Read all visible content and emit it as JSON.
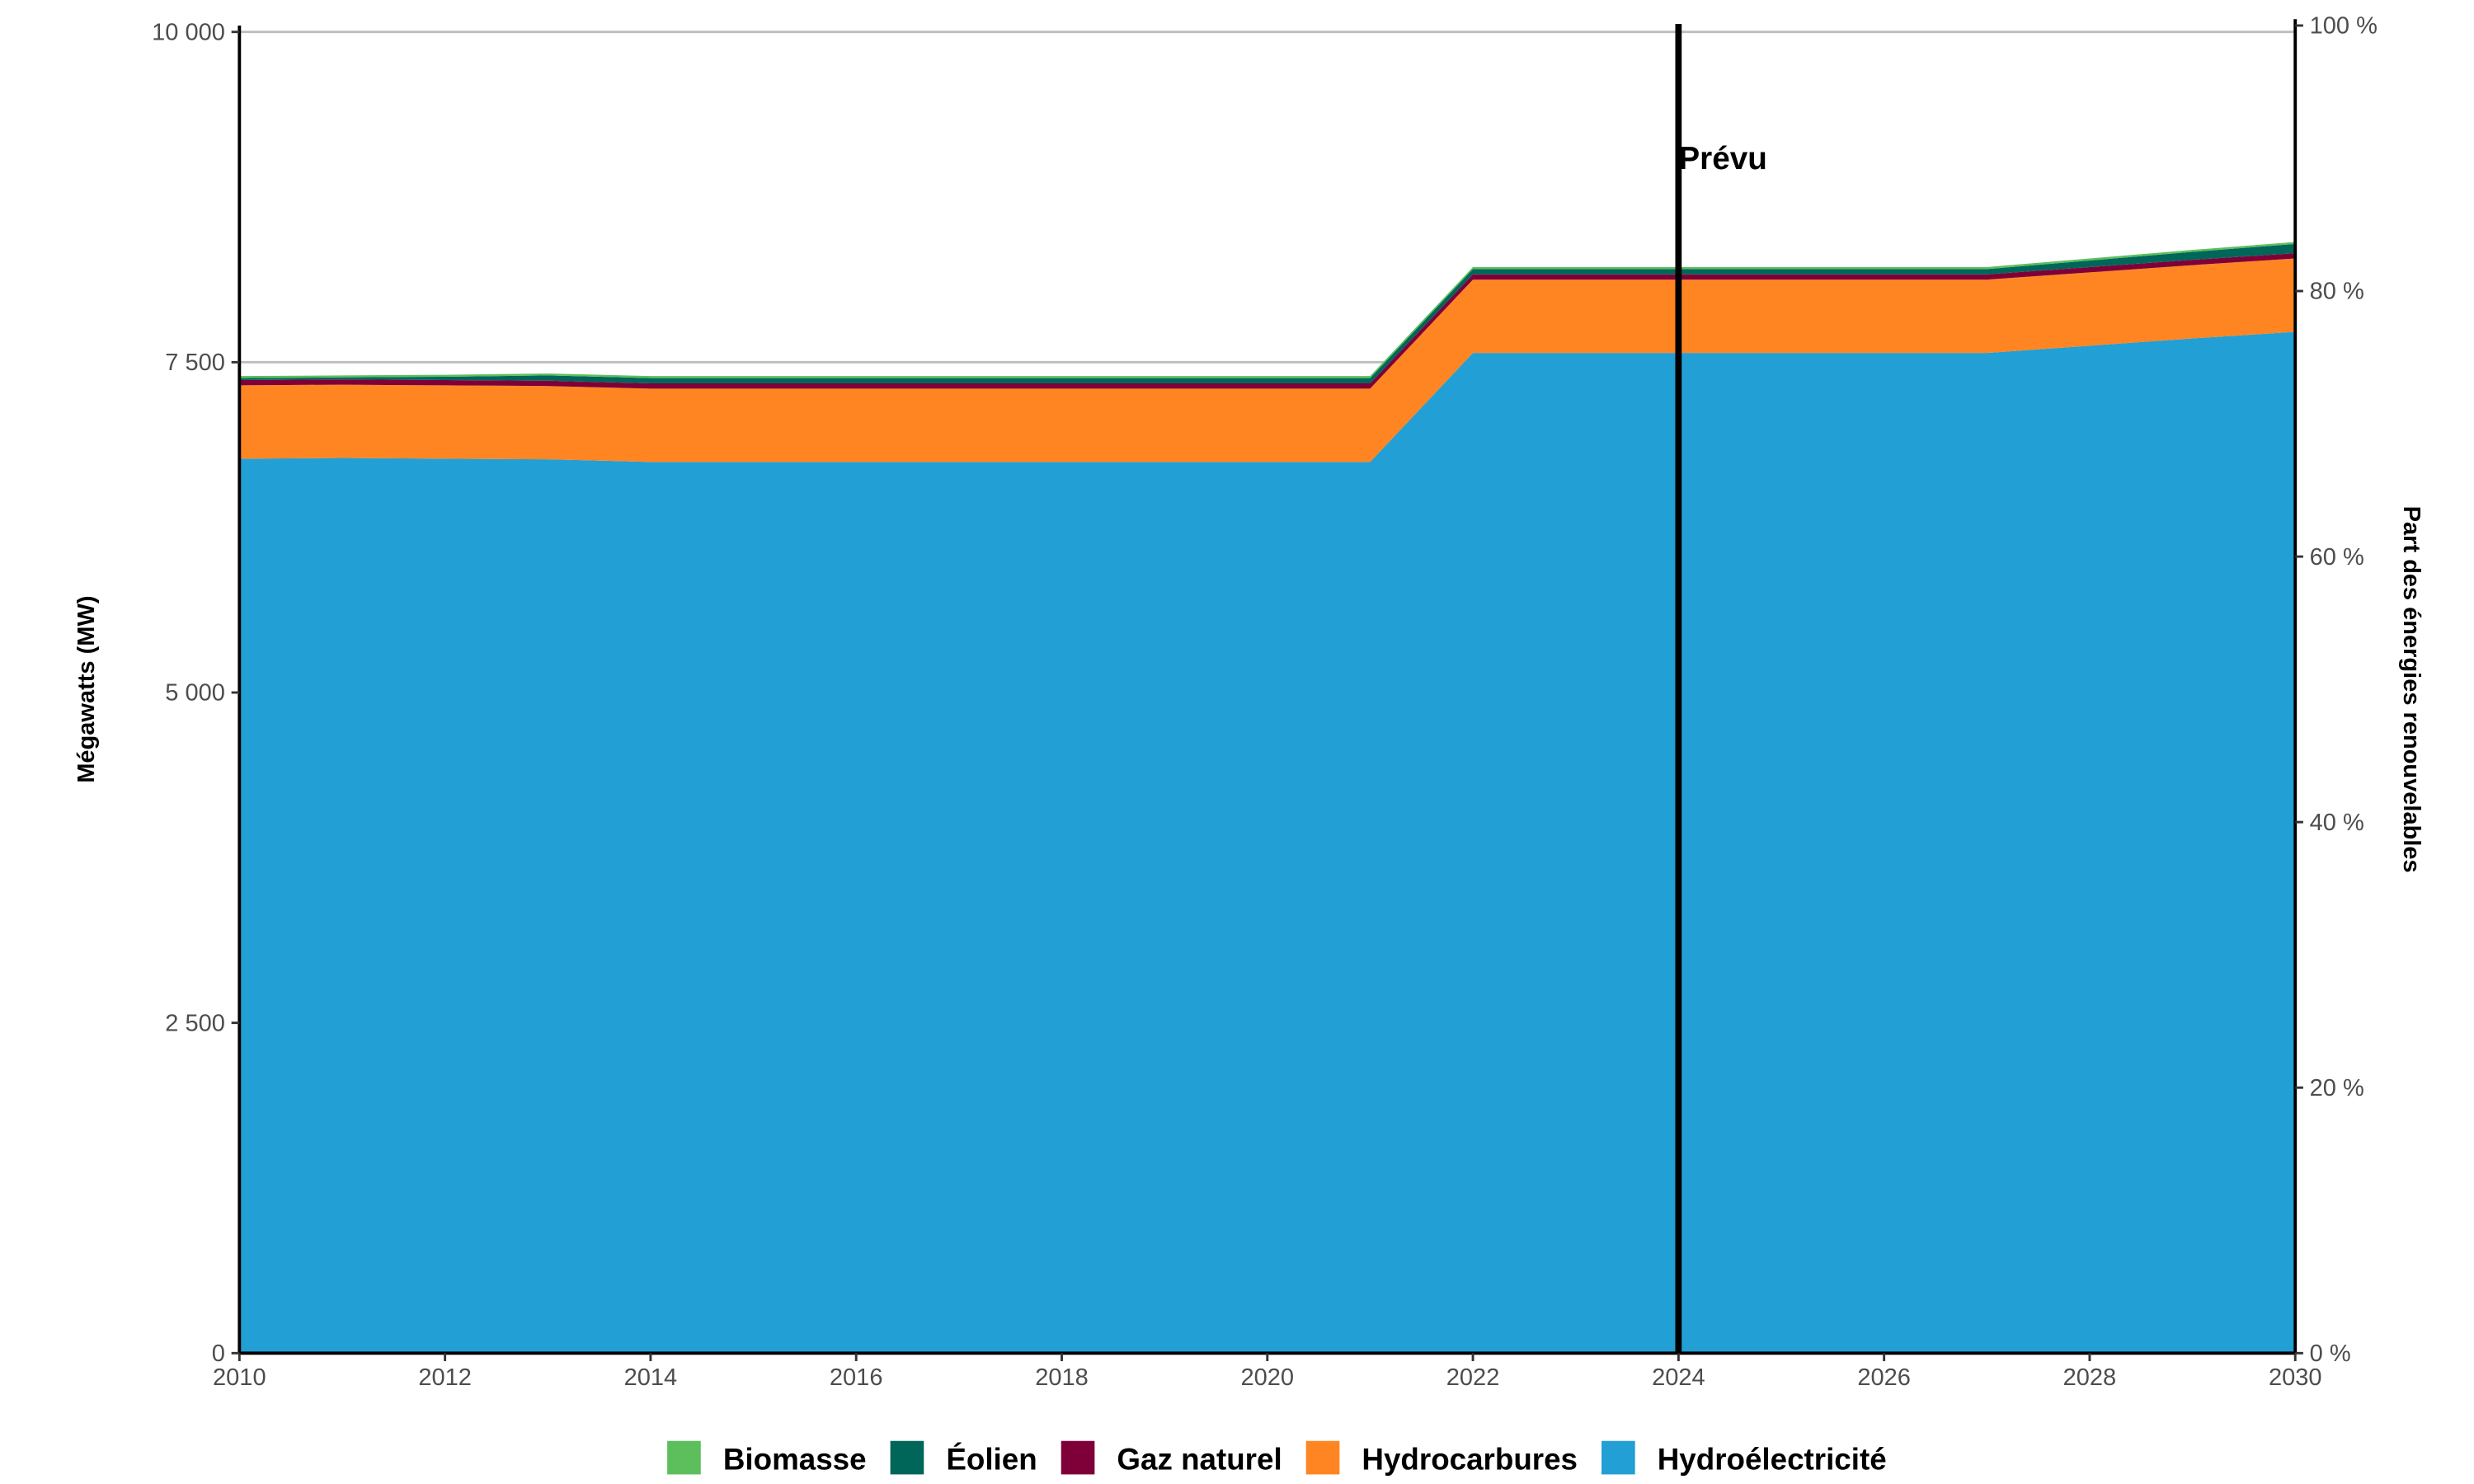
{
  "chart_data": {
    "type": "stacked-area",
    "x": [
      2010,
      2011,
      2012,
      2013,
      2014,
      2015,
      2016,
      2017,
      2018,
      2019,
      2020,
      2021,
      2022,
      2023,
      2024,
      2025,
      2026,
      2027,
      2028,
      2029,
      2030
    ],
    "series": [
      {
        "name": "Hydroélectricité",
        "color": "#229fd4",
        "values": [
          6770,
          6775,
          6770,
          6765,
          6745,
          6745,
          6745,
          6745,
          6745,
          6745,
          6745,
          6745,
          7570,
          7570,
          7570,
          7570,
          7570,
          7570,
          7625,
          7680,
          7730
        ]
      },
      {
        "name": "Hydrocarbures",
        "color": "#ff8522",
        "values": [
          555,
          555,
          555,
          555,
          555,
          555,
          555,
          555,
          555,
          555,
          555,
          555,
          555,
          555,
          555,
          555,
          555,
          555,
          555,
          555,
          555
        ]
      },
      {
        "name": "Gaz naturel",
        "color": "#7f0038",
        "values": [
          40,
          40,
          40,
          40,
          40,
          40,
          40,
          40,
          40,
          40,
          40,
          40,
          40,
          40,
          40,
          40,
          40,
          40,
          40,
          40,
          40
        ]
      },
      {
        "name": "Éolien",
        "color": "#00665a",
        "values": [
          15,
          15,
          25,
          40,
          40,
          40,
          40,
          40,
          40,
          40,
          40,
          40,
          40,
          40,
          40,
          40,
          40,
          40,
          50,
          60,
          70
        ]
      },
      {
        "name": "Biomasse",
        "color": "#5cbf5c",
        "values": [
          15,
          15,
          15,
          15,
          15,
          15,
          15,
          15,
          15,
          15,
          15,
          15,
          15,
          15,
          15,
          15,
          15,
          15,
          15,
          15,
          15
        ]
      }
    ],
    "xlim": [
      2010,
      2030
    ],
    "xticks": [
      2010,
      2012,
      2014,
      2016,
      2018,
      2020,
      2022,
      2024,
      2026,
      2028,
      2030
    ],
    "ylim": [
      0,
      10000
    ],
    "yticks": [
      0,
      {
        "value": 2500,
        "label": "2 500"
      },
      {
        "value": 5000,
        "label": "5 000"
      },
      {
        "value": 7500,
        "label": "7 500"
      },
      {
        "value": 10000,
        "label": "10 000"
      }
    ],
    "y2lim": [
      0,
      100
    ],
    "y2ticks": [
      {
        "value": 0,
        "label": "0 %"
      },
      {
        "value": 20,
        "label": "20 %"
      },
      {
        "value": 40,
        "label": "40 %"
      },
      {
        "value": 60,
        "label": "60 %"
      },
      {
        "value": 80,
        "label": "80 %"
      },
      {
        "value": 100,
        "label": "100 %"
      }
    ],
    "ylabel": "Mégawatts (MW)",
    "y2label": "Part des énergies renouvelables",
    "annotations": [
      {
        "x": 2024,
        "text": "Prévu"
      }
    ],
    "grid": true,
    "legend": "bottom"
  }
}
